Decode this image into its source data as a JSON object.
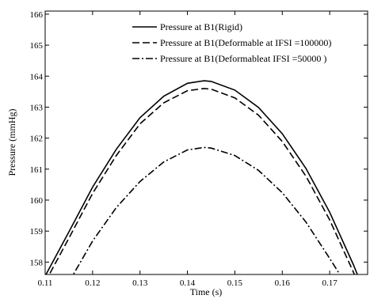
{
  "chart_data": {
    "type": "line",
    "xlabel": "Time (s)",
    "ylabel": "Pressure (mmHg)",
    "xlim": [
      0.11,
      0.178
    ],
    "ylim": [
      157.6,
      166.1
    ],
    "xticks": [
      "0.11",
      "0.12",
      "0.13",
      "0.14",
      "0.15",
      "0.16",
      "0.17"
    ],
    "yticks": [
      "158",
      "159",
      "160",
      "161",
      "162",
      "163",
      "164",
      "165",
      "166"
    ],
    "grid": false,
    "legend_position": "top-right",
    "series": [
      {
        "name": "Pressure at B1(Rigid)",
        "line_style": "solid",
        "x": [
          0.11,
          0.115,
          0.12,
          0.125,
          0.13,
          0.135,
          0.14,
          0.1435,
          0.145,
          0.15,
          0.155,
          0.16,
          0.165,
          0.17,
          0.175,
          0.178
        ],
        "y": [
          157.55,
          158.97,
          160.42,
          161.64,
          162.66,
          163.35,
          163.77,
          163.85,
          163.83,
          163.55,
          162.99,
          162.14,
          161.02,
          159.61,
          157.92,
          156.78
        ]
      },
      {
        "name": "Pressure at B1(Deformable at IFSI =100000)",
        "line_style": "dashed",
        "x": [
          0.11,
          0.115,
          0.12,
          0.125,
          0.13,
          0.135,
          0.14,
          0.1435,
          0.145,
          0.15,
          0.155,
          0.16,
          0.165,
          0.17,
          0.175,
          0.178
        ],
        "y": [
          157.35,
          158.77,
          160.22,
          161.44,
          162.46,
          163.14,
          163.53,
          163.6,
          163.58,
          163.3,
          162.74,
          161.89,
          160.77,
          159.36,
          157.68,
          156.55
        ]
      },
      {
        "name": "Pressure at B1(Deformableat IFSI =50000 )",
        "line_style": "dashdot",
        "x": [
          0.115,
          0.12,
          0.125,
          0.13,
          0.135,
          0.14,
          0.1435,
          0.145,
          0.15,
          0.155,
          0.16,
          0.165,
          0.17,
          0.175
        ],
        "y": [
          157.35,
          158.68,
          159.76,
          160.6,
          161.23,
          161.62,
          161.7,
          161.68,
          161.44,
          160.96,
          160.24,
          159.29,
          158.12,
          156.9
        ]
      }
    ]
  }
}
